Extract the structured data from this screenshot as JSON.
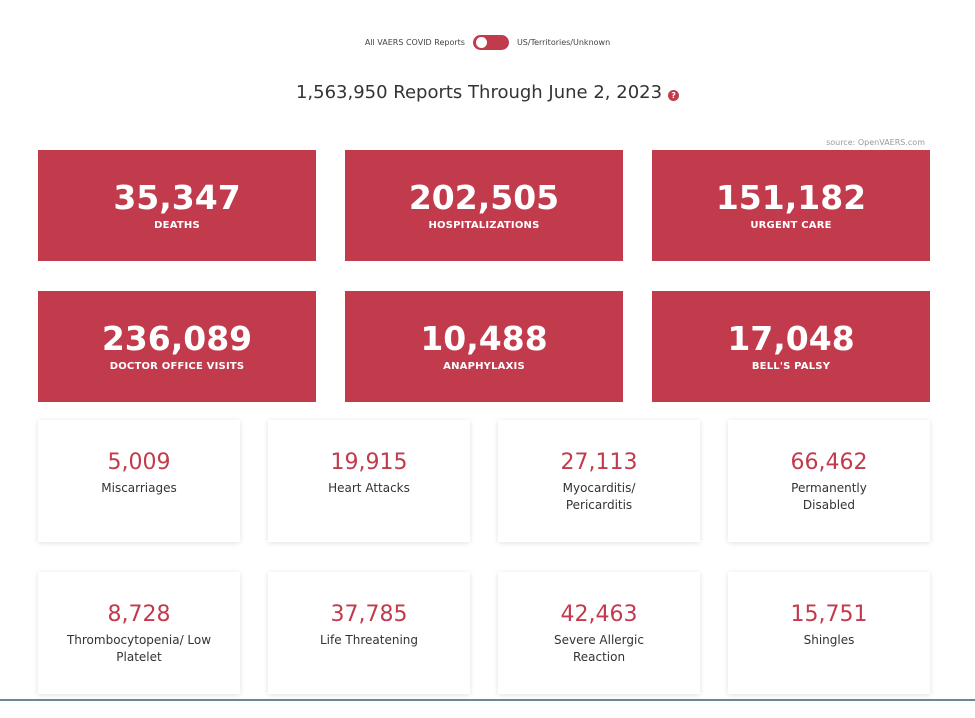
{
  "toggle": {
    "left_label": "All VAERS COVID Reports",
    "right_label": "US/Territories/Unknown"
  },
  "headline": {
    "text": "1,563,950 Reports Through June 2, 2023",
    "help_glyph": "?"
  },
  "source": "source: OpenVAERS.com",
  "colors": {
    "accent": "#c23b4c"
  },
  "red_tiles": [
    {
      "value": "35,347",
      "label": "DEATHS"
    },
    {
      "value": "202,505",
      "label": "HOSPITALIZATIONS"
    },
    {
      "value": "151,182",
      "label": "URGENT CARE"
    },
    {
      "value": "236,089",
      "label": "DOCTOR OFFICE VISITS"
    },
    {
      "value": "10,488",
      "label": "ANAPHYLAXIS"
    },
    {
      "value": "17,048",
      "label": "BELL'S PALSY"
    }
  ],
  "white_tiles": [
    {
      "value": "5,009",
      "label": "Miscarriages"
    },
    {
      "value": "19,915",
      "label": "Heart Attacks"
    },
    {
      "value": "27,113",
      "label": "Myocarditis/ Pericarditis"
    },
    {
      "value": "66,462",
      "label": "Permanently Disabled"
    },
    {
      "value": "8,728",
      "label": "Thrombocytopenia/ Low Platelet"
    },
    {
      "value": "37,785",
      "label": "Life Threatening"
    },
    {
      "value": "42,463",
      "label": "Severe Allergic Reaction"
    },
    {
      "value": "15,751",
      "label": "Shingles"
    }
  ]
}
